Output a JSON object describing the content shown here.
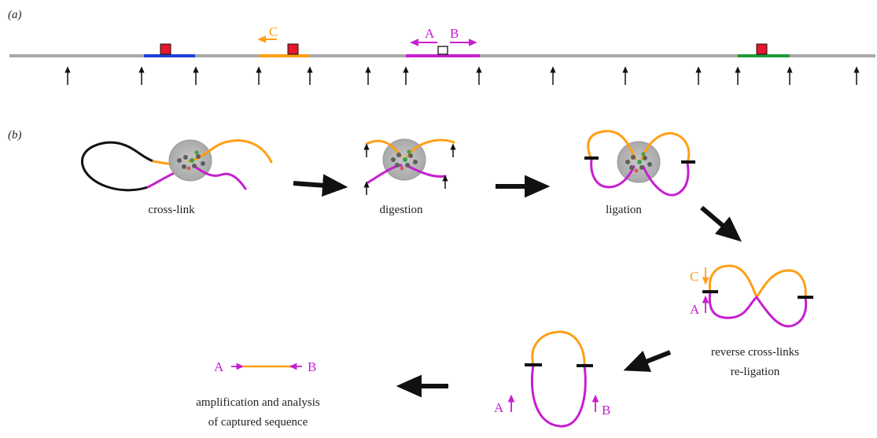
{
  "panels": {
    "a": "(a)",
    "b": "(b)"
  },
  "primers": {
    "A": "A",
    "B": "B",
    "C": "C"
  },
  "steps": {
    "crosslink": "cross-link",
    "digestion": "digestion",
    "ligation": "ligation",
    "reverse_line1": "reverse cross-links",
    "reverse_line2": "re-ligation",
    "analysis_line1": "amplification and analysis",
    "analysis_line2": "of captured sequence"
  },
  "colors": {
    "orange": "#ff9f14",
    "magenta": "#c61fd0",
    "blue": "#1f3fd6",
    "green": "#1f9a36",
    "red_box": "#e8162b",
    "chromatin_gray": "#9e9e9e",
    "black_loop": "#111111"
  }
}
